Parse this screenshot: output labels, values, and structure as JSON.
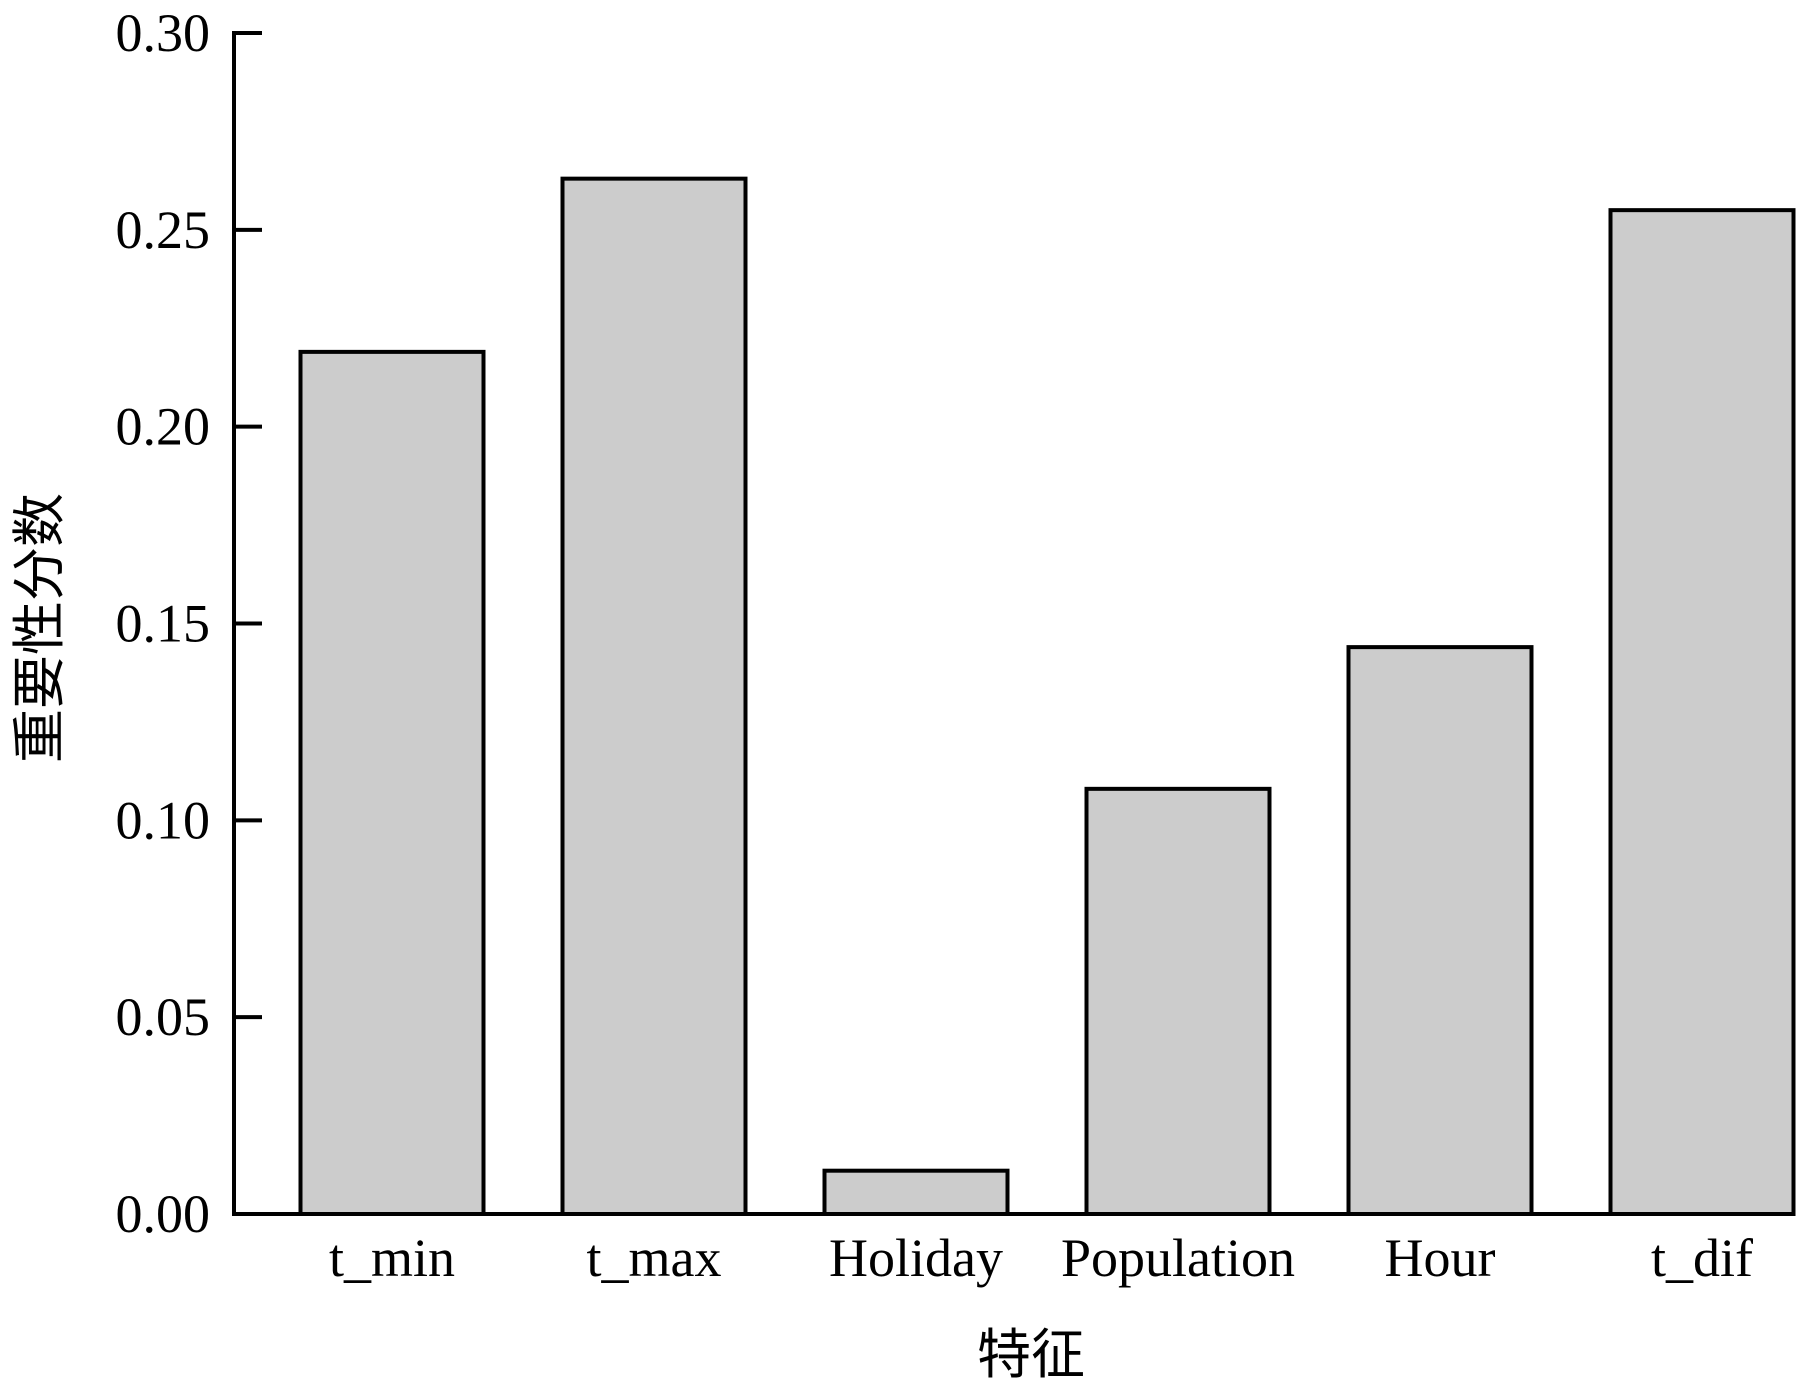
{
  "chart_data": {
    "type": "bar",
    "title": "",
    "xlabel": "特征",
    "ylabel": "重要性分数",
    "categories": [
      "t_min",
      "t_max",
      "Holiday",
      "Population",
      "Hour",
      "t_dif"
    ],
    "values": [
      0.219,
      0.263,
      0.011,
      0.108,
      0.144,
      0.255
    ],
    "ylim": [
      0,
      0.3
    ],
    "yticks": [
      0.0,
      0.05,
      0.1,
      0.15,
      0.2,
      0.25,
      0.3
    ],
    "ytick_labels": [
      "0.00",
      "0.05",
      "0.10",
      "0.15",
      "0.20",
      "0.25",
      "0.30"
    ],
    "grid": false,
    "legend": "none",
    "colors": {
      "bar_fill": "#cccccc",
      "bar_stroke": "#000000",
      "axis": "#000000",
      "text": "#000000"
    }
  }
}
